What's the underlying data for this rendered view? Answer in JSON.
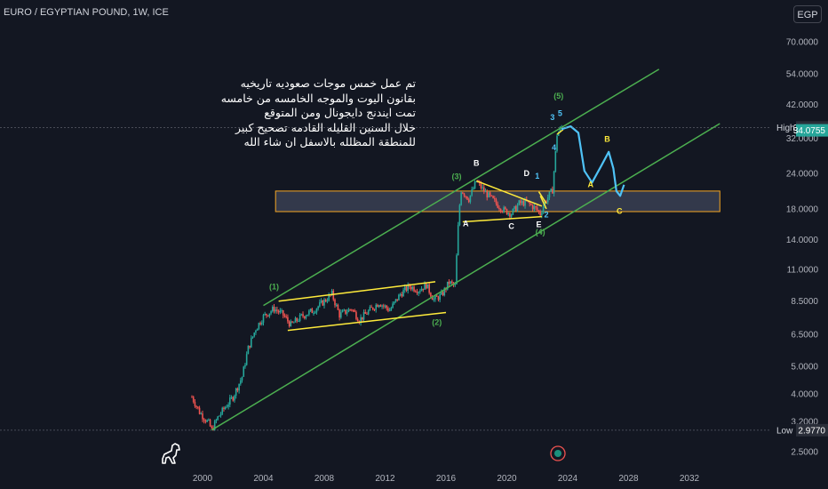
{
  "header": {
    "symbol_title": "EURO / EGYPTIAN POUND, 1W, ICE",
    "currency_button": "EGP"
  },
  "notes_ar": [
    "تم عمل خمس موجات صعوديه تاريخيه",
    "بقانون اليوت والموجه الخامسه من خامسه",
    "تمت ايندنج دايجونال ومن المتوقع",
    "خلال السنين القليله القادمه تصحيح كبير",
    "للمنطقة المظلله بالاسفل ان شاء الله"
  ],
  "colors": {
    "background": "#131722",
    "candle_up": "#26a69a",
    "candle_down": "#ef5350",
    "channel": "#4caf50",
    "flag": "#ffeb3b",
    "zone": "#f5a623",
    "projection": "#4fc3f7",
    "high_label": "#26a69a"
  },
  "chart_data": {
    "type": "candlestick",
    "title": "EURO / EGYPTIAN POUND, 1W, ICE",
    "x_axis": {
      "ticks": [
        "2000",
        "2004",
        "2008",
        "2012",
        "2016",
        "2020",
        "2024",
        "2028",
        "2032"
      ]
    },
    "y_axis": {
      "scale": "log",
      "ticks": [
        "70.0000",
        "54.0000",
        "42.0000",
        "32.0000",
        "24.0000",
        "18.0000",
        "14.0000",
        "11.0000",
        "8.5000",
        "6.5000",
        "5.0000",
        "4.0000",
        "3.2000",
        "2.5000"
      ]
    },
    "price_labels": [
      {
        "tag": "High",
        "value": "34.8836"
      },
      {
        "tag": "",
        "value": "34.0755"
      },
      {
        "tag": "Low",
        "value": "2.9770"
      }
    ],
    "series_path": [
      [
        1999.3,
        3.9
      ],
      [
        1999.8,
        3.45
      ],
      [
        2000.4,
        3.15
      ],
      [
        2000.6,
        2.98
      ],
      [
        2001.0,
        3.3
      ],
      [
        2001.5,
        3.6
      ],
      [
        2002.0,
        3.9
      ],
      [
        2002.6,
        4.6
      ],
      [
        2003.0,
        5.8
      ],
      [
        2003.5,
        6.8
      ],
      [
        2004.0,
        7.5
      ],
      [
        2004.7,
        8.0
      ],
      [
        2005.3,
        7.6
      ],
      [
        2005.8,
        7.0
      ],
      [
        2006.5,
        7.5
      ],
      [
        2007.3,
        7.9
      ],
      [
        2008.0,
        8.5
      ],
      [
        2008.5,
        9.0
      ],
      [
        2009.0,
        7.6
      ],
      [
        2009.8,
        8.0
      ],
      [
        2010.3,
        7.3
      ],
      [
        2011.0,
        7.9
      ],
      [
        2011.6,
        8.4
      ],
      [
        2012.3,
        7.9
      ],
      [
        2013.0,
        9.0
      ],
      [
        2013.6,
        9.6
      ],
      [
        2014.2,
        9.3
      ],
      [
        2014.7,
        9.7
      ],
      [
        2015.2,
        8.6
      ],
      [
        2015.7,
        8.9
      ],
      [
        2016.2,
        9.9
      ],
      [
        2016.6,
        9.6
      ],
      [
        2016.85,
        17.5
      ],
      [
        2017.0,
        21.0
      ],
      [
        2017.5,
        19.5
      ],
      [
        2018.0,
        22.5
      ],
      [
        2018.6,
        20.5
      ],
      [
        2019.3,
        18.8
      ],
      [
        2019.8,
        17.8
      ],
      [
        2020.3,
        17.3
      ],
      [
        2020.8,
        18.8
      ],
      [
        2021.3,
        19.0
      ],
      [
        2021.9,
        18.0
      ],
      [
        2022.2,
        17.3
      ],
      [
        2022.5,
        19.0
      ],
      [
        2023.0,
        21.0
      ],
      [
        2023.3,
        33.0
      ],
      [
        2023.6,
        34.88
      ]
    ],
    "channel_upper": [
      [
        2004.0,
        8.2
      ],
      [
        2030.0,
        56.0
      ]
    ],
    "channel_lower": [
      [
        2000.6,
        2.98
      ],
      [
        2034.0,
        36.0
      ]
    ],
    "zone": {
      "x": [
        2004.8,
        2034.0
      ],
      "y": [
        17.6,
        20.8
      ]
    },
    "wave_labels": [
      {
        "text": "(1)",
        "x": 2004.7,
        "y": 9.35
      },
      {
        "text": "(2)",
        "x": 2015.4,
        "y": 7.0
      },
      {
        "text": "(3)",
        "x": 2016.7,
        "y": 22.9
      },
      {
        "text": "(4)",
        "x": 2022.2,
        "y": 14.6
      },
      {
        "text": "(5)",
        "x": 2023.4,
        "y": 44.0
      },
      {
        "text": "A",
        "x": 2017.3,
        "y": 15.6
      },
      {
        "text": "B",
        "x": 2018.0,
        "y": 25.5
      },
      {
        "text": "C",
        "x": 2020.3,
        "y": 15.3
      },
      {
        "text": "D",
        "x": 2021.3,
        "y": 23.5
      },
      {
        "text": "E",
        "x": 2022.1,
        "y": 15.5
      },
      {
        "text": "1",
        "x": 2022.0,
        "y": 23.0
      },
      {
        "text": "2",
        "x": 2022.6,
        "y": 16.8
      },
      {
        "text": "3",
        "x": 2023.0,
        "y": 37.0
      },
      {
        "text": "4",
        "x": 2023.1,
        "y": 29.0
      },
      {
        "text": "5",
        "x": 2023.5,
        "y": 38.3
      },
      {
        "text": "A",
        "x": 2025.5,
        "y": 21.5
      },
      {
        "text": "B",
        "x": 2026.6,
        "y": 31.0
      },
      {
        "text": "C",
        "x": 2027.4,
        "y": 17.3
      }
    ]
  }
}
